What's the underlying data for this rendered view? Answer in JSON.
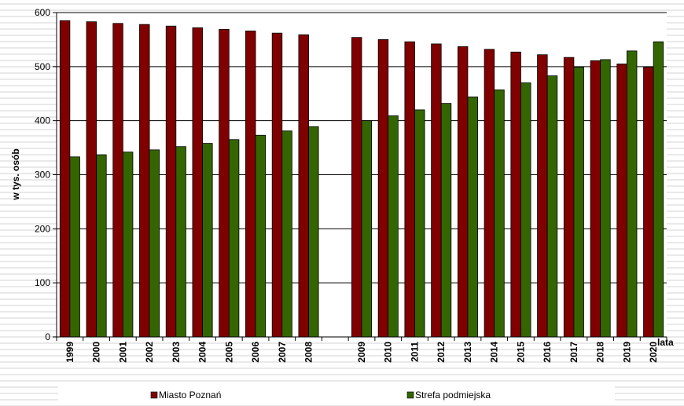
{
  "chart_data": {
    "type": "bar",
    "ylabel": "w tys. osób",
    "xlabel": "lata",
    "ylim": [
      0,
      600
    ],
    "yticks": [
      0,
      100,
      200,
      300,
      400,
      500,
      600
    ],
    "grid": true,
    "legend_position": "bottom",
    "categories": [
      "1999",
      "2000",
      "2001",
      "2002",
      "2003",
      "2004",
      "2005",
      "2006",
      "2007",
      "2008",
      "2009",
      "2010",
      "2011",
      "2012",
      "2013",
      "2014",
      "2015",
      "2016",
      "2017",
      "2018",
      "2019",
      "2020"
    ],
    "series": [
      {
        "name": "Miasto Poznań",
        "color": "#800000",
        "values": [
          585,
          583,
          580,
          578,
          575,
          572,
          569,
          566,
          562,
          559,
          554,
          550,
          546,
          542,
          537,
          532,
          527,
          522,
          517,
          511,
          505,
          499
        ]
      },
      {
        "name": "Strefa podmiejska",
        "color": "#336600",
        "values": [
          333,
          337,
          342,
          346,
          352,
          358,
          365,
          373,
          381,
          389,
          400,
          409,
          420,
          432,
          444,
          457,
          470,
          483,
          499,
          513,
          529,
          546
        ]
      }
    ]
  }
}
